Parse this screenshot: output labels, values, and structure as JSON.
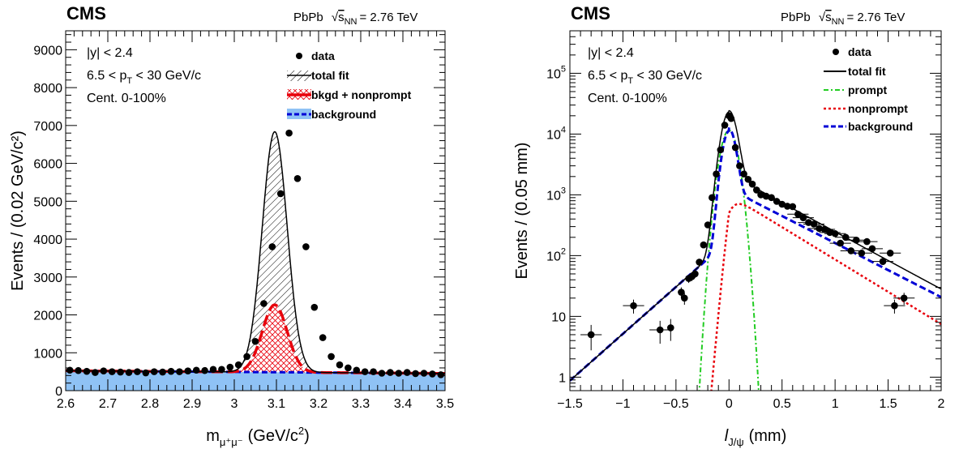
{
  "chart_data": [
    {
      "type": "scatter",
      "cms_label": "CMS",
      "collision": {
        "system": "PbPb",
        "sqrt_sym": "s",
        "sub": "NN",
        "energy": "= 2.76 TeV"
      },
      "xlabel": {
        "base": "m",
        "sub": "μ⁺μ⁻",
        "unit": "(GeV/c",
        "sup": "2",
        "close": ")"
      },
      "ylabel": "Events / (0.02 GeV/c²)",
      "xlim": [
        2.6,
        3.5
      ],
      "ylim": [
        0,
        9500
      ],
      "x_ticks": [
        "2.6",
        "2.7",
        "2.8",
        "2.9",
        "3",
        "3.1",
        "3.2",
        "3.3",
        "3.4",
        "3.5"
      ],
      "y_ticks": [
        "0",
        "1000",
        "2000",
        "3000",
        "4000",
        "5000",
        "6000",
        "7000",
        "8000",
        "9000"
      ],
      "annotations": [
        "|y| < 2.4",
        "6.5 < p",
        "T",
        " < 30 GeV/c",
        "Cent. 0-100%"
      ],
      "legend": {
        "position": "top-right",
        "entries": [
          "data",
          "total fit",
          "bkgd + nonprompt",
          "background"
        ]
      },
      "colors": {
        "data": "#000000",
        "total_fit": "#000000",
        "bkgd_nonprompt": "#e8000b",
        "background_fill": "#8fc2f5",
        "background_line": "#0000d6"
      },
      "series": [
        {
          "name": "data",
          "x": [
            2.61,
            2.63,
            2.65,
            2.67,
            2.69,
            2.71,
            2.73,
            2.75,
            2.77,
            2.79,
            2.81,
            2.83,
            2.85,
            2.87,
            2.89,
            2.91,
            2.93,
            2.95,
            2.97,
            2.99,
            3.01,
            3.03,
            3.05,
            3.07,
            3.09,
            3.11,
            3.13,
            3.15,
            3.17,
            3.19,
            3.21,
            3.23,
            3.25,
            3.27,
            3.29,
            3.31,
            3.33,
            3.35,
            3.37,
            3.39,
            3.41,
            3.43,
            3.45,
            3.47,
            3.49
          ],
          "y": [
            540,
            530,
            510,
            480,
            520,
            500,
            490,
            480,
            500,
            470,
            500,
            490,
            510,
            500,
            520,
            540,
            530,
            560,
            560,
            620,
            680,
            900,
            1300,
            2300,
            3800,
            5200,
            6800,
            5600,
            3800,
            2200,
            1400,
            900,
            680,
            600,
            540,
            500,
            500,
            460,
            480,
            460,
            480,
            450,
            460,
            440,
            420
          ]
        }
      ],
      "fit": {
        "background": {
          "a": 490,
          "b": -80
        },
        "total_peak": {
          "amp": 6350,
          "mu": 3.096,
          "sigma": 0.0295
        },
        "nonprompt_peak": {
          "amp": 1780,
          "mu": 3.096,
          "sigma": 0.0295
        }
      }
    },
    {
      "type": "scatter",
      "cms_label": "CMS",
      "collision": {
        "system": "PbPb",
        "sqrt_sym": "s",
        "sub": "NN",
        "energy": "= 2.76 TeV"
      },
      "xlabel": {
        "base": "l",
        "sub": "J/ψ",
        "unit": "(mm)"
      },
      "ylabel": "Events / (0.05 mm)",
      "xlim": [
        -1.5,
        2
      ],
      "ylim": [
        0.6,
        500000
      ],
      "yscale": "log",
      "x_ticks": [
        "−1.5",
        "−1",
        "−0.5",
        "0",
        "0.5",
        "1",
        "1.5",
        "2"
      ],
      "y_ticks": [
        {
          "base": "1",
          "exp": ""
        },
        {
          "base": "10",
          "exp": ""
        },
        {
          "base": "10",
          "exp": "2"
        },
        {
          "base": "10",
          "exp": "3"
        },
        {
          "base": "10",
          "exp": "4"
        },
        {
          "base": "10",
          "exp": "5"
        }
      ],
      "annotations": [
        "|y| < 2.4",
        "6.5 < p",
        "T",
        " < 30 GeV/c",
        "Cent. 0-100%"
      ],
      "legend": {
        "position": "top-right",
        "entries": [
          "data",
          "total fit",
          "prompt",
          "nonprompt",
          "background"
        ]
      },
      "colors": {
        "data": "#000000",
        "total_fit": "#000000",
        "prompt": "#22cc22",
        "nonprompt": "#e8000b",
        "background": "#0000d6"
      },
      "series": [
        {
          "name": "data",
          "x": [
            -1.3,
            -0.9,
            -0.65,
            -0.55,
            -0.45,
            -0.42,
            -0.38,
            -0.35,
            -0.32,
            -0.28,
            -0.24,
            -0.2,
            -0.16,
            -0.12,
            -0.08,
            -0.04,
            0.0,
            0.02,
            0.06,
            0.1,
            0.14,
            0.18,
            0.22,
            0.26,
            0.3,
            0.35,
            0.4,
            0.45,
            0.5,
            0.55,
            0.6,
            0.65,
            0.7,
            0.75,
            0.8,
            0.85,
            0.9,
            0.95,
            1.0,
            1.05,
            1.1,
            1.15,
            1.2,
            1.25,
            1.3,
            1.35,
            1.45,
            1.52,
            1.56,
            1.65
          ],
          "y": [
            5,
            15,
            6,
            6.5,
            25,
            20,
            42,
            45,
            50,
            78,
            150,
            320,
            900,
            2200,
            5500,
            14000,
            20000,
            18000,
            6000,
            3000,
            2200,
            1800,
            1500,
            1200,
            1000,
            950,
            900,
            780,
            700,
            650,
            640,
            480,
            420,
            350,
            330,
            280,
            270,
            240,
            230,
            160,
            200,
            120,
            180,
            110,
            170,
            130,
            80,
            110,
            15,
            20
          ]
        }
      ],
      "fit": {
        "background": {
          "core_amp": 11000,
          "sigma": 0.05,
          "left_amp": 180,
          "left_slope": 3.55,
          "right_amp": 1250,
          "right_slope": 2.05
        },
        "prompt": {
          "amp": 11500,
          "sigma": 0.063
        },
        "nonprompt": {
          "amp": 1000,
          "rise": 0.045,
          "slope": 2.45
        }
      }
    }
  ]
}
